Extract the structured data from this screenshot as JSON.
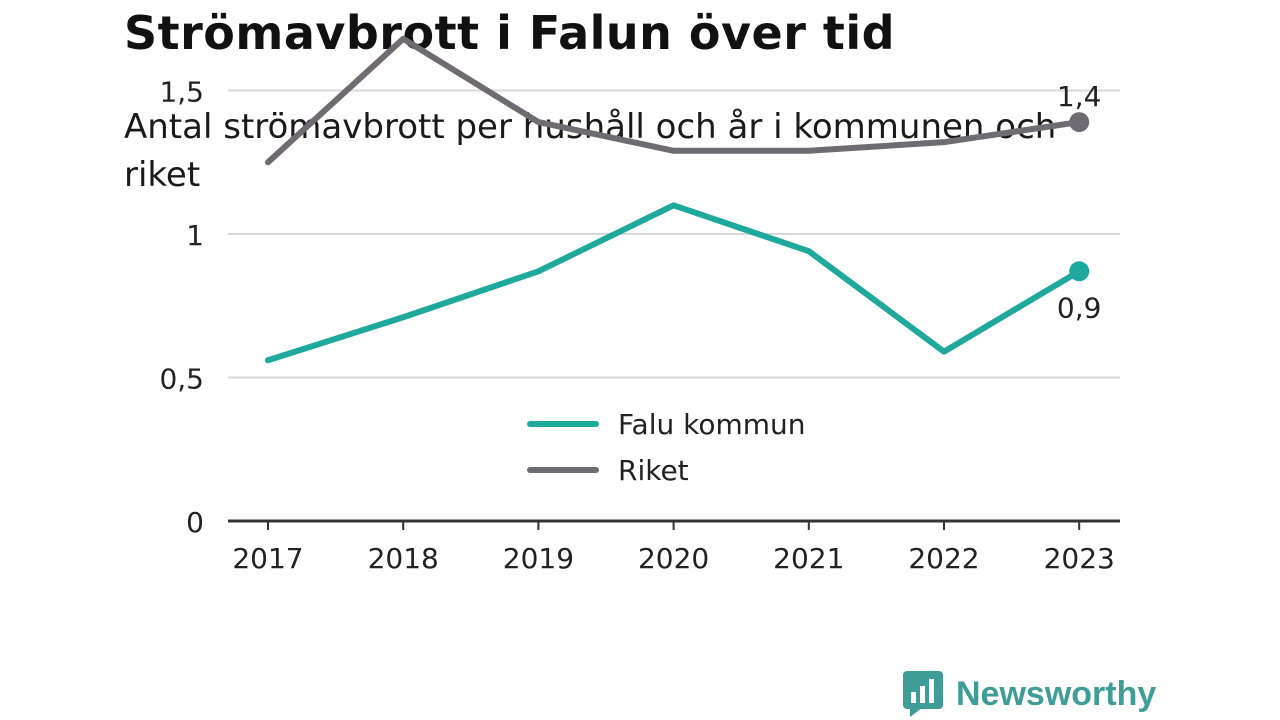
{
  "header": {
    "title": "Strömavbrott i Falun över tid",
    "subtitle": "Antal strömavbrott per hushåll och år i kommunen och riket"
  },
  "brand": {
    "name": "Newsworthy",
    "icon": "bar-chart-bubble-icon",
    "color": "#3e9d97"
  },
  "chart_data": {
    "type": "line",
    "x": [
      "2017",
      "2018",
      "2019",
      "2020",
      "2021",
      "2022",
      "2023"
    ],
    "y_ticks": [
      "0",
      "0,5",
      "1",
      "1,5"
    ],
    "y_tick_values": [
      0,
      0.5,
      1,
      1.5
    ],
    "ylim": [
      0,
      1.75
    ],
    "grid": true,
    "legend_position": "center",
    "series": [
      {
        "name": "Falu kommun",
        "color": "#1fa89c",
        "values": [
          0.56,
          0.71,
          0.87,
          1.1,
          0.94,
          0.59,
          0.87
        ],
        "end_label": "0,9"
      },
      {
        "name": "Riket",
        "color": "#6e6c72",
        "values": [
          1.25,
          1.68,
          1.39,
          1.29,
          1.29,
          1.32,
          1.39
        ],
        "end_label": "1,4"
      }
    ]
  }
}
